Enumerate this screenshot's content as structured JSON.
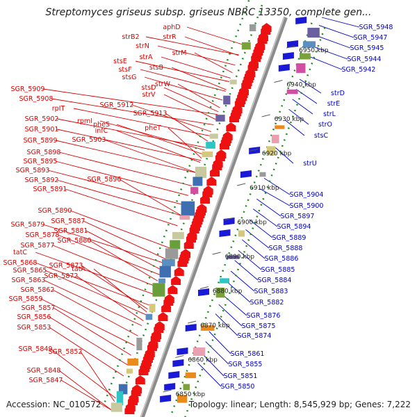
{
  "title": "Streptomyces griseus subsp. griseus NBRC 13350, complete gen...",
  "accession_label": "Accession: NC_010572",
  "summary_label": "Topology: linear; Length: 8,545,929 bp; Genes: 7,222",
  "colors": {
    "backbone": "#8c8c8c",
    "left_label": "#dd0000",
    "right_label": "#0000cc",
    "tick": "#1e8c1e"
  },
  "ruler": [
    {
      "label": "6950 kbp",
      "pos": 6950
    },
    {
      "label": "6940 kbp",
      "pos": 6940
    },
    {
      "label": "6930 kbp",
      "pos": 6930
    },
    {
      "label": "6920 kbp",
      "pos": 6920
    },
    {
      "label": "6910 kbp",
      "pos": 6910
    },
    {
      "label": "6900 kbp",
      "pos": 6900
    },
    {
      "label": "6890 kbp",
      "pos": 6890
    },
    {
      "label": "6880 kbp",
      "pos": 6880
    },
    {
      "label": "6870 kbp",
      "pos": 6870
    },
    {
      "label": "6860 kbp",
      "pos": 6860
    },
    {
      "label": "6850 kbp",
      "pos": 6850
    }
  ],
  "left_genes": [
    "aphD",
    "strB2",
    "strR",
    "strN",
    "strM",
    "stsE",
    "strA",
    "stsF",
    "stsB",
    "stsG",
    "strW",
    "stsD",
    "strV",
    "SGR_5909",
    "SGR_5908",
    "SGR_5912",
    "rpIT",
    "SGR_5913",
    "SGR_5902",
    "rpmI",
    "pheS",
    "pheT",
    "SGR_5901",
    "infC",
    "SGR_5899",
    "SGR_5903",
    "SGR_5898",
    "SGR_5895",
    "SGR_5893",
    "SGR_5892",
    "SGR_5896",
    "SGR_5891",
    "SGR_5890",
    "SGR_5887",
    "SGR_5879",
    "SGR_5881",
    "SGR_5878",
    "SGR_5880",
    "SGR_5877",
    "tatC",
    "SGR_5868",
    "tatA",
    "SGR_5873",
    "SGR_5865",
    "SGR_5872",
    "SGR_5863",
    "SGR_5862",
    "SGR_5859",
    "SGR_5857",
    "SGR_5856",
    "SGR_5853",
    "SGR_5849",
    "SGR_5852",
    "SGR_5848",
    "SGR_5847"
  ],
  "right_genes": [
    "SGR_5948",
    "SGR_5947",
    "SGR_5945",
    "SGR_5944",
    "SGR_5942",
    "strD",
    "strE",
    "strL",
    "strO",
    "stsC",
    "strU",
    "SGR_5904",
    "SGR_5900",
    "SGR_5897",
    "SGR_5894",
    "SGR_5889",
    "SGR_5888",
    "SGR_5886",
    "SGR_5885",
    "SGR_5884",
    "SGR_5883",
    "SGR_5882",
    "SGR_5876",
    "SGR_5875",
    "SGR_5874",
    "SGR_5861",
    "SGR_5855",
    "SGR_5851",
    "SGR_5850"
  ]
}
